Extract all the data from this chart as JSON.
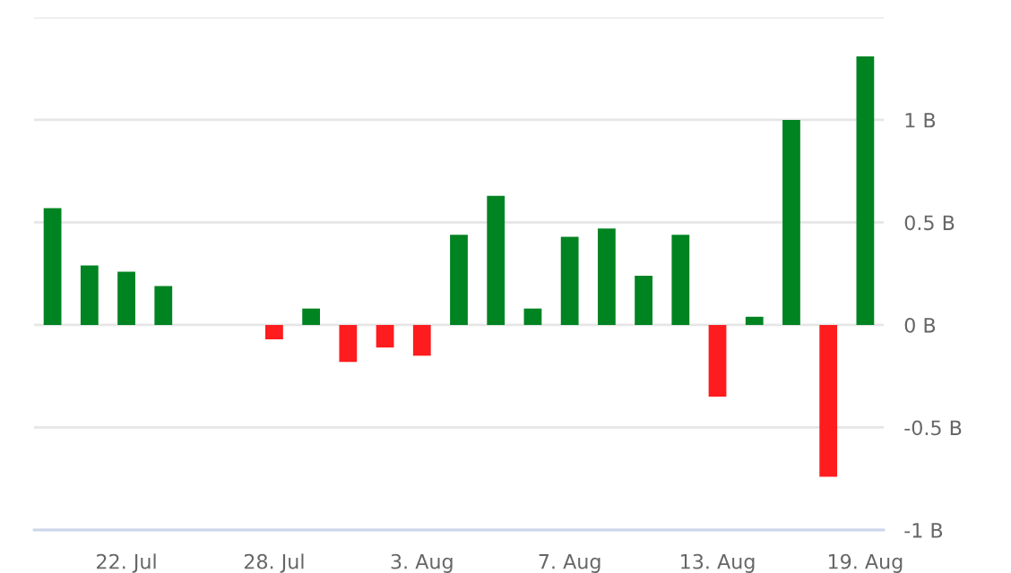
{
  "chart_data": {
    "type": "bar",
    "categories": [
      null,
      null,
      "22. Jul",
      null,
      null,
      null,
      "28. Jul",
      null,
      null,
      null,
      "3. Aug",
      null,
      null,
      null,
      "7. Aug",
      null,
      null,
      null,
      "13. Aug",
      null,
      null,
      null,
      "19. Aug"
    ],
    "values": [
      0.57,
      0.29,
      0.26,
      0.19,
      null,
      null,
      -0.07,
      0.08,
      -0.18,
      -0.11,
      -0.15,
      0.44,
      0.63,
      0.08,
      0.43,
      0.47,
      0.24,
      0.44,
      -0.35,
      0.04,
      1.0,
      -0.74,
      1.31
    ],
    "colors": [
      "#008321",
      "#008321",
      "#008321",
      "#008321",
      "#008321",
      "#008321",
      "#ff1c1e",
      "#008321",
      "#ff1c1e",
      "#ff1c1e",
      "#ff1c1e",
      "#008321",
      "#008321",
      "#008321",
      "#008321",
      "#008321",
      "#008321",
      "#008321",
      "#ff1c1e",
      "#008321",
      "#008321",
      "#ff1c1e",
      "#008321"
    ],
    "ylim": [
      -1,
      1.5
    ],
    "yticks": [
      {
        "value": -1,
        "label": "-1 B"
      },
      {
        "value": -0.5,
        "label": "-0.5 B"
      },
      {
        "value": 0,
        "label": "0 B"
      },
      {
        "value": 0.5,
        "label": "0.5 B"
      },
      {
        "value": 1,
        "label": "1 B"
      },
      {
        "value": 1.5,
        "label": null
      }
    ],
    "grid": "y",
    "legend": false
  }
}
